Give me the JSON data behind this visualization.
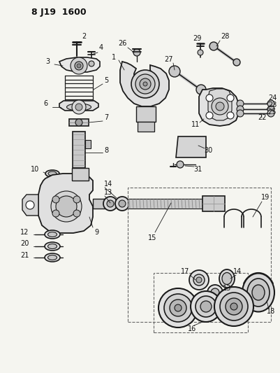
{
  "title": "8 J19  1600",
  "bg_color": "#f5f5f0",
  "line_color": "#1a1a1a",
  "text_color": "#111111",
  "fig_width": 4.01,
  "fig_height": 5.33,
  "dpi": 100
}
